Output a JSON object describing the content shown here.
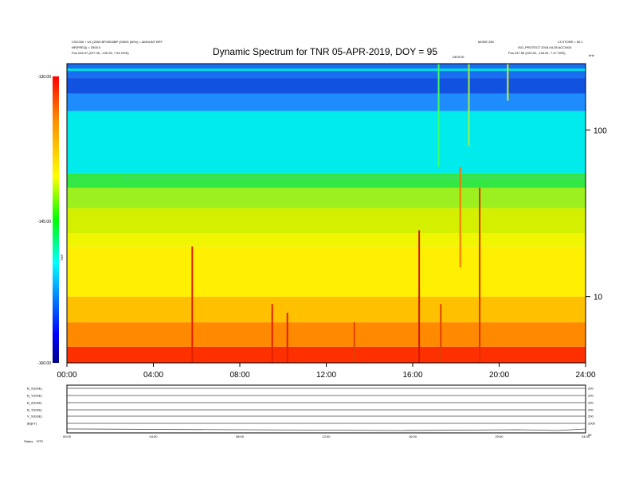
{
  "header": {
    "left_line1": "CSC000 + k/1 (2000 BP/2500BP (20000 (50%) = AMOUNT BPF",
    "left_line2": "NP(FREQ) = 2500.0",
    "left_pos": "Pos    245.47 (227.05, -100.25, 7.54 GSE)",
    "right_top_a": "MODE 250",
    "right_top_b": "L3 STORE = 50.1",
    "right_line2": "ISO_PROTECT  2018-04-05 ACCW10",
    "right_pos": "Pos    247.55 (223.52, -104.81, 7.47 GSE)",
    "center_small": "DEVICE",
    "title": "Dynamic Spectrum for TNR 05-APR-2019, DOY = 95",
    "khz_label": "kHz"
  },
  "colorbar": {
    "ticks": [
      "-130.00",
      "-145.00",
      "-160.00"
    ],
    "unit": "TNR",
    "colors": [
      "#ff0000",
      "#ff8c00",
      "#ffff00",
      "#00ff00",
      "#00ffff",
      "#0000ff",
      "#00008b"
    ]
  },
  "chart_data": {
    "type": "heatmap",
    "title": "Dynamic Spectrum for TNR 05-APR-2019, DOY = 95",
    "x_ticks": [
      "00:00",
      "04:00",
      "08:00",
      "12:00",
      "16:00",
      "20:00",
      "24:00"
    ],
    "x_range": [
      0,
      24
    ],
    "y_scale": "log",
    "y_range": [
      4,
      250
    ],
    "y_ticks": [
      10,
      100
    ],
    "y_unit": "kHz",
    "z_range": [
      -160,
      -130
    ],
    "z_ticks": [
      -130,
      -145,
      -160
    ],
    "bands": [
      {
        "f_lo": 4,
        "f_hi": 5,
        "color": "#ff3000"
      },
      {
        "f_lo": 5,
        "f_hi": 7,
        "color": "#ff8a00"
      },
      {
        "f_lo": 7,
        "f_hi": 10,
        "color": "#ffc000"
      },
      {
        "f_lo": 10,
        "f_hi": 20,
        "color": "#ffef00"
      },
      {
        "f_lo": 20,
        "f_hi": 24,
        "color": "#f0f500"
      },
      {
        "f_lo": 24,
        "f_hi": 34,
        "color": "#d4f000"
      },
      {
        "f_lo": 34,
        "f_hi": 45,
        "color": "#9cf020"
      },
      {
        "f_lo": 45,
        "f_hi": 55,
        "color": "#33e845"
      },
      {
        "f_lo": 55,
        "f_hi": 130,
        "color": "#00ecec"
      },
      {
        "f_lo": 130,
        "f_hi": 165,
        "color": "#1e8cff"
      },
      {
        "f_lo": 165,
        "f_hi": 205,
        "color": "#1252e0"
      },
      {
        "f_lo": 205,
        "f_hi": 250,
        "color": "#1a6ef0"
      }
    ],
    "vertical_streaks": [
      {
        "t": 5.8,
        "f_lo": 4,
        "f_hi": 20,
        "color": "#e02000"
      },
      {
        "t": 9.5,
        "f_lo": 4,
        "f_hi": 9,
        "color": "#e02000"
      },
      {
        "t": 10.2,
        "f_lo": 4,
        "f_hi": 8,
        "color": "#e02000"
      },
      {
        "t": 13.3,
        "f_lo": 4,
        "f_hi": 7,
        "color": "#e04000"
      },
      {
        "t": 16.3,
        "f_lo": 4,
        "f_hi": 25,
        "color": "#d01800"
      },
      {
        "t": 17.2,
        "f_lo": 60,
        "f_hi": 250,
        "color": "#40ff60"
      },
      {
        "t": 17.3,
        "f_lo": 4,
        "f_hi": 9,
        "color": "#e04000"
      },
      {
        "t": 18.2,
        "f_lo": 15,
        "f_hi": 60,
        "color": "#ff7000"
      },
      {
        "t": 18.6,
        "f_lo": 80,
        "f_hi": 250,
        "color": "#a0f040"
      },
      {
        "t": 19.1,
        "f_lo": 4,
        "f_hi": 45,
        "color": "#e03000"
      },
      {
        "t": 20.4,
        "f_lo": 150,
        "f_hi": 250,
        "color": "#d0f020"
      }
    ],
    "horizontal_lines": [
      {
        "f": 230,
        "t0": 0,
        "t1": 24,
        "color": "#00e0e0"
      },
      {
        "f": 52,
        "t0": 2.5,
        "t1": 24,
        "color": "#40e060"
      }
    ]
  },
  "bottom_panel": {
    "left_labels": [
      "B_X(GSE)",
      "B_Y(GSE)",
      "B_Z(GSE)",
      "B_T(GSE)",
      "V_X(GSE)",
      "|B|(nT)",
      "Status"
    ],
    "right_labels": [
      "200",
      "200",
      "200",
      "200",
      "200",
      "2000",
      "50"
    ],
    "x_ticks": [
      "00:00",
      "04:00",
      "08:00",
      "12:00",
      "16:00",
      "20:00",
      "24:00"
    ],
    "status_flag": "RTS"
  }
}
